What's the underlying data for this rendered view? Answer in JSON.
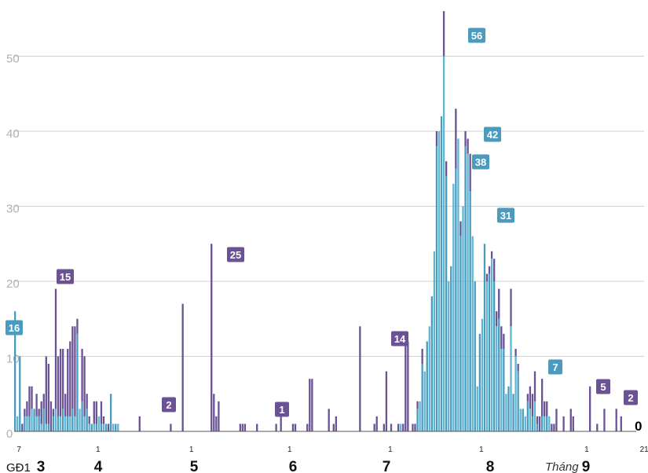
{
  "colors": {
    "community": "#6a5294",
    "isolated": "#4a9bbd",
    "isolated_light": "#5fb6d3",
    "grid": "#d0d0d0",
    "axis_text": "#b0b0b0"
  },
  "chart_data": {
    "type": "bar",
    "title": "",
    "xlabel": "",
    "ylabel": "",
    "ylim": [
      0,
      58
    ],
    "yticks": [
      0,
      10,
      20,
      30,
      40,
      50
    ],
    "series": [
      {
        "name": "community",
        "color": "#6a5294"
      },
      {
        "name": "isolated",
        "color": "#4a9bbd"
      }
    ],
    "x_day_ticks": [
      "7",
      "1",
      "1",
      "1",
      "1",
      "1",
      "1",
      "21"
    ],
    "months": [
      "3",
      "4",
      "5",
      "6",
      "7",
      "8",
      "9"
    ],
    "phase_label": "GĐ1",
    "month_prefix": "Tháng",
    "end_value_label": "0",
    "annotations": [
      {
        "value": "16",
        "style": "isolated"
      },
      {
        "value": "15",
        "style": "community"
      },
      {
        "value": "2",
        "style": "community"
      },
      {
        "value": "25",
        "style": "community"
      },
      {
        "value": "1",
        "style": "community"
      },
      {
        "value": "14",
        "style": "community"
      },
      {
        "value": "56",
        "style": "isolated"
      },
      {
        "value": "38",
        "style": "isolated"
      },
      {
        "value": "42",
        "style": "isolated"
      },
      {
        "value": "31",
        "style": "isolated"
      },
      {
        "value": "7",
        "style": "isolated"
      },
      {
        "value": "5",
        "style": "community"
      },
      {
        "value": "2",
        "style": "community"
      }
    ],
    "bars": [
      [
        16,
        0
      ],
      [
        2,
        0
      ],
      [
        10,
        0
      ],
      [
        0,
        1
      ],
      [
        2,
        1
      ],
      [
        2,
        2
      ],
      [
        2,
        4
      ],
      [
        3,
        3
      ],
      [
        3,
        0
      ],
      [
        2,
        3
      ],
      [
        2,
        1
      ],
      [
        1,
        3
      ],
      [
        3,
        2
      ],
      [
        1,
        9
      ],
      [
        1,
        8
      ],
      [
        0,
        4
      ],
      [
        2,
        1
      ],
      [
        3,
        16
      ],
      [
        2,
        8
      ],
      [
        2,
        9
      ],
      [
        3,
        8
      ],
      [
        2,
        3
      ],
      [
        2,
        9
      ],
      [
        2,
        10
      ],
      [
        3,
        11
      ],
      [
        2,
        12
      ],
      [
        13,
        2
      ],
      [
        3,
        0
      ],
      [
        4,
        7
      ],
      [
        2,
        8
      ],
      [
        3,
        2
      ],
      [
        1,
        1
      ],
      [
        1,
        0
      ],
      [
        1,
        3
      ],
      [
        1,
        3
      ],
      [
        2,
        0
      ],
      [
        1,
        3
      ],
      [
        1,
        1
      ],
      [
        1,
        0
      ],
      [
        0,
        1
      ],
      [
        5,
        0
      ],
      [
        1,
        0
      ],
      [
        1,
        0
      ],
      [
        1,
        0
      ],
      [
        0,
        0
      ],
      [
        0,
        0
      ],
      [
        0,
        0
      ],
      [
        0,
        0
      ],
      [
        0,
        0
      ],
      [
        0,
        0
      ],
      [
        0,
        0
      ],
      [
        0,
        0
      ],
      [
        0,
        2
      ],
      [
        0,
        0
      ],
      [
        0,
        0
      ],
      [
        0,
        0
      ],
      [
        0,
        0
      ],
      [
        0,
        0
      ],
      [
        0,
        0
      ],
      [
        0,
        0
      ],
      [
        0,
        0
      ],
      [
        0,
        0
      ],
      [
        0,
        0
      ],
      [
        0,
        0
      ],
      [
        0,
        0
      ],
      [
        0,
        1
      ],
      [
        0,
        0
      ],
      [
        0,
        0
      ],
      [
        0,
        0
      ],
      [
        0,
        0
      ],
      [
        0,
        17
      ],
      [
        0,
        0
      ],
      [
        0,
        0
      ],
      [
        0,
        0
      ],
      [
        0,
        0
      ],
      [
        0,
        0
      ],
      [
        0,
        0
      ],
      [
        0,
        0
      ],
      [
        0,
        0
      ],
      [
        0,
        0
      ],
      [
        0,
        0
      ],
      [
        0,
        0
      ],
      [
        0,
        25
      ],
      [
        0,
        5
      ],
      [
        0,
        2
      ],
      [
        0,
        4
      ],
      [
        0,
        0
      ],
      [
        0,
        0
      ],
      [
        0,
        0
      ],
      [
        0,
        0
      ],
      [
        0,
        0
      ],
      [
        0,
        0
      ],
      [
        0,
        0
      ],
      [
        0,
        0
      ],
      [
        0,
        1
      ],
      [
        0,
        1
      ],
      [
        0,
        1
      ],
      [
        0,
        0
      ],
      [
        0,
        0
      ],
      [
        0,
        0
      ],
      [
        0,
        0
      ],
      [
        0,
        1
      ],
      [
        0,
        0
      ],
      [
        0,
        0
      ],
      [
        0,
        0
      ],
      [
        0,
        0
      ],
      [
        0,
        0
      ],
      [
        0,
        0
      ],
      [
        0,
        0
      ],
      [
        0,
        1
      ],
      [
        0,
        0
      ],
      [
        0,
        3
      ],
      [
        0,
        0
      ],
      [
        0,
        0
      ],
      [
        0,
        0
      ],
      [
        0,
        0
      ],
      [
        0,
        1
      ],
      [
        0,
        1
      ],
      [
        0,
        0
      ],
      [
        0,
        0
      ],
      [
        0,
        0
      ],
      [
        0,
        0
      ],
      [
        0,
        1
      ],
      [
        0,
        7
      ],
      [
        0,
        7
      ],
      [
        0,
        0
      ],
      [
        0,
        0
      ],
      [
        0,
        0
      ],
      [
        0,
        0
      ],
      [
        0,
        0
      ],
      [
        0,
        0
      ],
      [
        0,
        3
      ],
      [
        0,
        0
      ],
      [
        0,
        1
      ],
      [
        0,
        2
      ],
      [
        0,
        0
      ],
      [
        0,
        0
      ],
      [
        0,
        0
      ],
      [
        0,
        0
      ],
      [
        0,
        0
      ],
      [
        0,
        0
      ],
      [
        0,
        0
      ],
      [
        0,
        0
      ],
      [
        0,
        0
      ],
      [
        0,
        14
      ],
      [
        0,
        0
      ],
      [
        0,
        0
      ],
      [
        0,
        0
      ],
      [
        0,
        0
      ],
      [
        0,
        0
      ],
      [
        0,
        1
      ],
      [
        0,
        2
      ],
      [
        0,
        0
      ],
      [
        0,
        0
      ],
      [
        0,
        1
      ],
      [
        0,
        8
      ],
      [
        0,
        0
      ],
      [
        0,
        1
      ],
      [
        0,
        0
      ],
      [
        0,
        0
      ],
      [
        0,
        1
      ],
      [
        1,
        0
      ],
      [
        0,
        1
      ],
      [
        0,
        12
      ],
      [
        0,
        12
      ],
      [
        0,
        0
      ],
      [
        0,
        1
      ],
      [
        0,
        1
      ],
      [
        3,
        1
      ],
      [
        4,
        0
      ],
      [
        9,
        2
      ],
      [
        8,
        0
      ],
      [
        12,
        0
      ],
      [
        14,
        0
      ],
      [
        18,
        0
      ],
      [
        24,
        0
      ],
      [
        38,
        2
      ],
      [
        40,
        0
      ],
      [
        42,
        0
      ],
      [
        50,
        6
      ],
      [
        34,
        2
      ],
      [
        20,
        0
      ],
      [
        22,
        0
      ],
      [
        33,
        0
      ],
      [
        35,
        8
      ],
      [
        39,
        0
      ],
      [
        26,
        2
      ],
      [
        30,
        0
      ],
      [
        38,
        2
      ],
      [
        37,
        2
      ],
      [
        32,
        5
      ],
      [
        26,
        0
      ],
      [
        20,
        0
      ],
      [
        6,
        0
      ],
      [
        13,
        0
      ],
      [
        15,
        0
      ],
      [
        25,
        0
      ],
      [
        20,
        1
      ],
      [
        21,
        1
      ],
      [
        23,
        1
      ],
      [
        20,
        3
      ],
      [
        14,
        2
      ],
      [
        15,
        4
      ],
      [
        11,
        3
      ],
      [
        11,
        2
      ],
      [
        5,
        0
      ],
      [
        6,
        0
      ],
      [
        14,
        5
      ],
      [
        5,
        0
      ],
      [
        10,
        1
      ],
      [
        8,
        1
      ],
      [
        3,
        0
      ],
      [
        3,
        0
      ],
      [
        2,
        0
      ],
      [
        4,
        1
      ],
      [
        3,
        3
      ],
      [
        2,
        3
      ],
      [
        4,
        4
      ],
      [
        1,
        1
      ],
      [
        0,
        2
      ],
      [
        2,
        5
      ],
      [
        2,
        2
      ],
      [
        2,
        2
      ],
      [
        2,
        0
      ],
      [
        0,
        1
      ],
      [
        0,
        1
      ],
      [
        0,
        3
      ],
      [
        0,
        0
      ],
      [
        0,
        0
      ],
      [
        0,
        2
      ],
      [
        0,
        0
      ],
      [
        0,
        0
      ],
      [
        0,
        3
      ],
      [
        0,
        2
      ],
      [
        0,
        0
      ],
      [
        0,
        0
      ],
      [
        0,
        0
      ],
      [
        0,
        0
      ],
      [
        0,
        0
      ],
      [
        0,
        0
      ],
      [
        0,
        6
      ],
      [
        0,
        0
      ],
      [
        0,
        0
      ],
      [
        0,
        1
      ],
      [
        0,
        0
      ],
      [
        0,
        0
      ],
      [
        0,
        3
      ],
      [
        0,
        0
      ],
      [
        0,
        0
      ],
      [
        0,
        0
      ],
      [
        0,
        0
      ],
      [
        0,
        3
      ],
      [
        0,
        0
      ],
      [
        0,
        2
      ]
    ]
  }
}
